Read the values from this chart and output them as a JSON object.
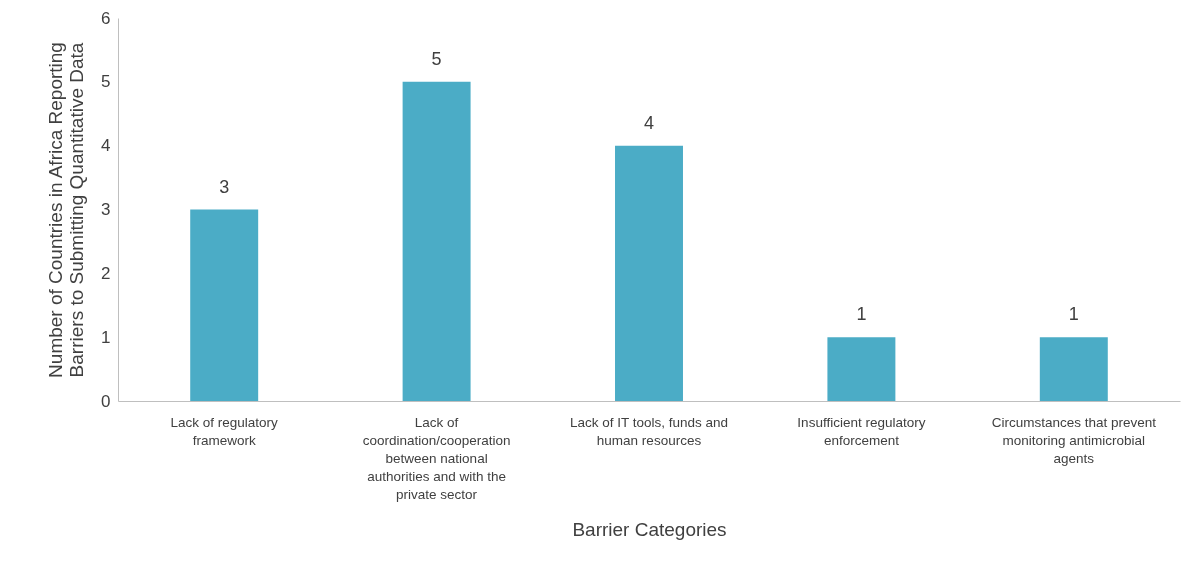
{
  "chart_data": {
    "type": "bar",
    "xlabel": "Barrier Categories",
    "ylabel": "Number of Countries in Africa Reporting Barriers to Submitting Quantitative Data",
    "categories": [
      "Lack of regulatory framework",
      "Lack of coordination/cooperation between national authorities and with the private sector",
      "Lack of IT tools, funds and human resources",
      "Insufficient regulatory enforcement",
      "Circumstances that prevent monitoring antimicrobial agents"
    ],
    "values": [
      3,
      5,
      4,
      1,
      1
    ],
    "color": "#4bacc6",
    "ylim": [
      0,
      6
    ],
    "yticks": [
      0,
      1,
      2,
      3,
      4,
      5,
      6
    ],
    "grid": false,
    "data_labels": true
  }
}
